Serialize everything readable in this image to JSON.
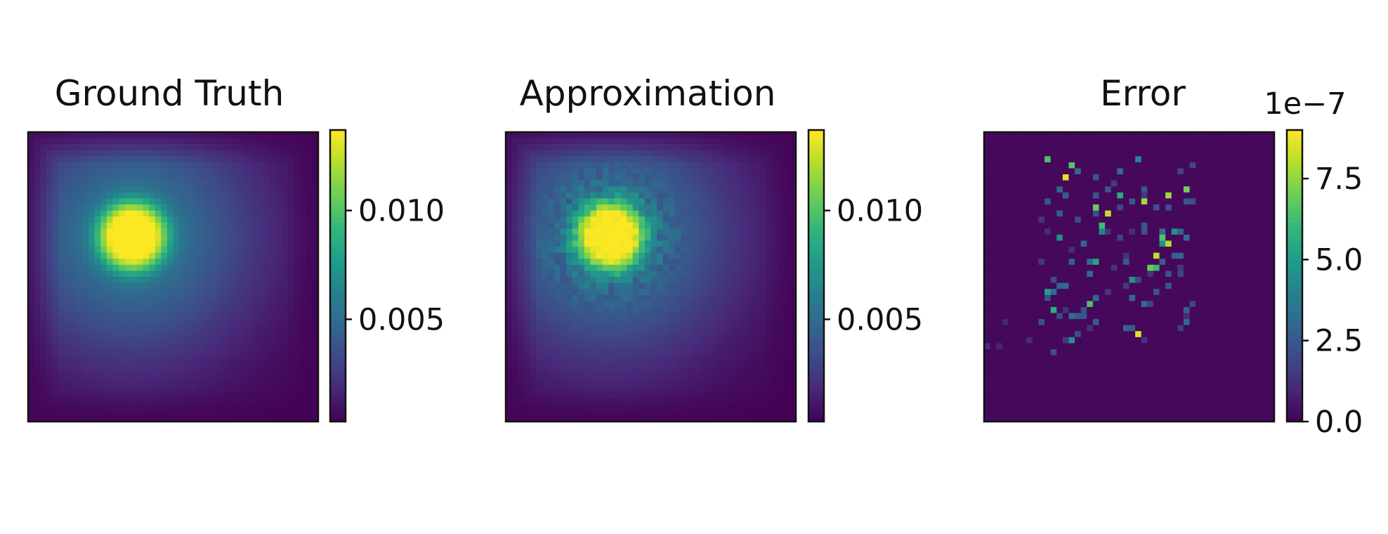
{
  "chart_data": [
    {
      "type": "heatmap",
      "title": "Ground Truth",
      "colormap": "viridis",
      "colorbar": {
        "ticks": [
          0.005,
          0.01
        ],
        "tick_labels": [
          "0.005",
          "0.010"
        ],
        "range": [
          0.0003,
          0.0137
        ],
        "offset_label": ""
      },
      "field": {
        "peak": [
          0.36,
          0.36
        ],
        "sigma": 0.085,
        "secondary_sigma": 0.3,
        "noise": 0
      }
    },
    {
      "type": "heatmap",
      "title": "Approximation",
      "colormap": "viridis",
      "colorbar": {
        "ticks": [
          0.005,
          0.01
        ],
        "tick_labels": [
          "0.005",
          "0.010"
        ],
        "range": [
          0.0003,
          0.0137
        ],
        "offset_label": ""
      },
      "field": {
        "peak": [
          0.36,
          0.36
        ],
        "sigma": 0.085,
        "secondary_sigma": 0.3,
        "noise": 0.09
      }
    },
    {
      "type": "heatmap",
      "title": "Error",
      "colormap": "viridis",
      "colorbar": {
        "ticks": [
          0.0,
          2.5,
          5.0,
          7.5
        ],
        "tick_labels": [
          "0.0",
          "2.5",
          "5.0",
          "7.5"
        ],
        "range": [
          0.0,
          9.0
        ],
        "offset_label": "1e−7"
      },
      "field": {
        "peak": [
          0.52,
          0.42
        ],
        "sparse_errors": true
      }
    }
  ]
}
